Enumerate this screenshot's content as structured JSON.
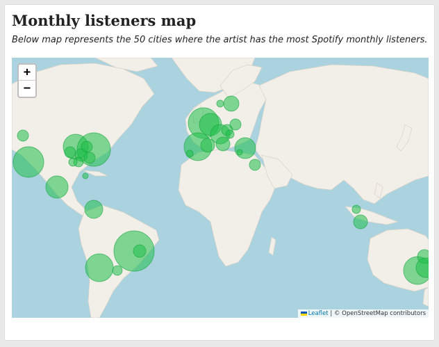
{
  "header": {
    "title": "Monthly listeners map",
    "subtitle": "Below map represents the 50 cities where the artist has the most Spotify monthly listeners."
  },
  "zoom_controls": {
    "zoom_in": "+",
    "zoom_out": "−"
  },
  "attribution": {
    "leaflet": "Leaflet",
    "separator": "|",
    "osm": "© OpenStreetMap contributors"
  },
  "colors": {
    "water": "#aad3df",
    "land": "#f2efe9",
    "marker_fill": "#1fbf4a",
    "marker_stroke": "#19a33f"
  }
}
